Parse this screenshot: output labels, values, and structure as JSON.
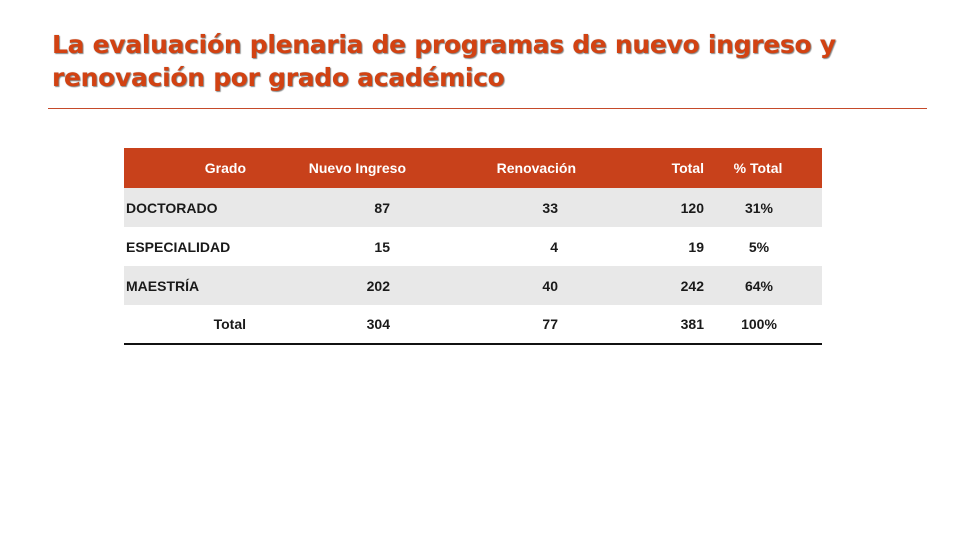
{
  "slide": {
    "title": "La evaluación plenaria de programas de nuevo ingreso y renovación por grado académico"
  },
  "table": {
    "headers": [
      "Grado",
      "Nuevo Ingreso",
      "Renovación",
      "Total",
      "% Total"
    ],
    "rows": [
      [
        "DOCTORADO",
        "87",
        "33",
        "120",
        "31%"
      ],
      [
        "ESPECIALIDAD",
        "15",
        "4",
        "19",
        "5%"
      ],
      [
        "MAESTRÍA",
        "202",
        "40",
        "242",
        "64%"
      ]
    ],
    "total_row": [
      "Total",
      "304",
      "77",
      "381",
      "100%"
    ]
  },
  "colors": {
    "title": "#d24212",
    "header_fill": "#c8411b",
    "row_shade": "#e8e8e8",
    "rule": "#c54a2a"
  }
}
